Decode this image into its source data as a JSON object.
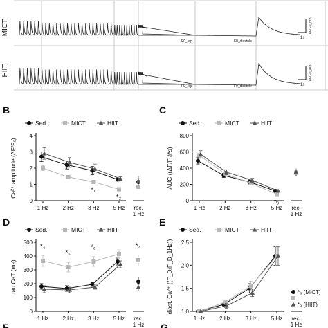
{
  "traces": {
    "rows": [
      "MICT",
      "HIIT"
    ],
    "scale_time": "1s",
    "scale_amp_mict": "1ΔF/F0_rep",
    "scale_amp_hiit": "1ΔF/F0_rep",
    "baseline_labels": [
      "F0_rep",
      "F0_diastole"
    ]
  },
  "legend": {
    "sed": "Sed.",
    "mict": "MICT",
    "hiit": "HIIT"
  },
  "colors": {
    "sed": "#111111",
    "mict": "#b8b8b8",
    "hiit": "#555555"
  },
  "chart_data": [
    {
      "panel": "B",
      "type": "line",
      "ylabel": "Ca²⁺ amplitude (ΔF/F₀)",
      "categories": [
        "1 Hz",
        "2 Hz",
        "3 Hz",
        "5 Hz"
      ],
      "extra_category": "rec. 1 Hz",
      "ylim": [
        0,
        4
      ],
      "yticks": [
        0,
        1,
        2,
        3,
        4
      ],
      "series": [
        {
          "name": "Sed.",
          "values": [
            2.7,
            2.2,
            1.85,
            1.3
          ],
          "errors": [
            0.3,
            0.25,
            0.25,
            0.1
          ],
          "rec": 1.15,
          "rec_err": 0.25
        },
        {
          "name": "MICT",
          "values": [
            2.0,
            1.45,
            1.15,
            0.7
          ],
          "errors": [
            0.15,
            0.1,
            0.1,
            0.05
          ],
          "rec": 0.85,
          "rec_err": 0.1
        },
        {
          "name": "HIIT",
          "values": [
            2.9,
            2.35,
            1.95,
            1.35
          ],
          "errors": [
            0.35,
            0.3,
            0.3,
            0.12
          ],
          "rec": 1.2,
          "rec_err": 0.3
        }
      ],
      "annotations": [
        {
          "text": "*₁",
          "category": "3 Hz"
        },
        {
          "text": "*₂",
          "category": "5 Hz"
        }
      ]
    },
    {
      "panel": "C",
      "type": "line",
      "ylabel": "AUC ((ΔF/F₀)*s)",
      "categories": [
        "1 Hz",
        "2 Hz",
        "3 Hz",
        "5 Hz"
      ],
      "extra_category": "rec. 1 Hz",
      "ylim": [
        0,
        800
      ],
      "yticks": [
        0,
        200,
        400,
        600,
        800
      ],
      "series": [
        {
          "name": "Sed.",
          "values": [
            490,
            310,
            230,
            120
          ],
          "errors": [
            40,
            25,
            25,
            10
          ],
          "rec": 345,
          "rec_err": 40
        },
        {
          "name": "MICT",
          "values": [
            560,
            330,
            215,
            80
          ],
          "errors": [
            40,
            25,
            20,
            10
          ],
          "rec": 345,
          "rec_err": 30
        },
        {
          "name": "HIIT",
          "values": [
            570,
            350,
            250,
            120
          ],
          "errors": [
            45,
            30,
            25,
            10
          ],
          "rec": 355,
          "rec_err": 40
        }
      ],
      "annotations": [
        {
          "text": "*₃",
          "category": "5 Hz"
        }
      ]
    },
    {
      "panel": "D",
      "type": "line",
      "ylabel": "tau CaT (ms)",
      "categories": [
        "1 Hz",
        "2 Hz",
        "3 Hz",
        "5 Hz"
      ],
      "extra_category": "rec. 1 Hz",
      "ylim": [
        0,
        500
      ],
      "yticks": [
        0,
        100,
        200,
        300,
        400,
        500
      ],
      "series": [
        {
          "name": "Sed.",
          "values": [
            180,
            165,
            195,
            360
          ],
          "errors": [
            20,
            20,
            15,
            25
          ],
          "rec": 215,
          "rec_err": 30
        },
        {
          "name": "MICT",
          "values": [
            365,
            320,
            360,
            415
          ],
          "errors": [
            40,
            35,
            35,
            30
          ],
          "rec": 370,
          "rec_err": 40
        },
        {
          "name": "HIIT",
          "values": [
            160,
            155,
            175,
            340
          ],
          "errors": [
            25,
            20,
            15,
            25
          ],
          "rec": 175,
          "rec_err": 25
        }
      ],
      "annotations": [
        {
          "text": "*₄",
          "category": "1 Hz"
        },
        {
          "text": "*₅",
          "category": "2 Hz"
        },
        {
          "text": "*₆",
          "category": "3 Hz"
        },
        {
          "text": "*₇",
          "category": "rec. 1 Hz"
        }
      ]
    },
    {
      "panel": "E",
      "type": "line",
      "ylabel": "diast. Ca²⁺ ((F_D/F_D_1Hz))",
      "categories": [
        "1 Hz",
        "2 Hz",
        "3 Hz",
        "5 Hz"
      ],
      "extra_category": "rec. 1 Hz",
      "ylim": [
        1.0,
        2.5
      ],
      "yticks": [
        1.0,
        1.5,
        2.0,
        2.5
      ],
      "series": [
        {
          "name": "Sed.",
          "values": [
            1.0,
            1.15,
            1.5,
            2.2
          ],
          "errors": [
            0.0,
            0.05,
            0.1,
            0.2
          ]
        },
        {
          "name": "MICT",
          "values": [
            1.0,
            1.2,
            1.55,
            2.2
          ],
          "errors": [
            0.0,
            0.05,
            0.1,
            0.2
          ]
        },
        {
          "name": "HIIT",
          "values": [
            1.0,
            1.12,
            1.4,
            2.2
          ],
          "errors": [
            0.0,
            0.05,
            0.08,
            0.2
          ]
        }
      ],
      "rec_markers": [
        {
          "name": "Sed.",
          "label": "*₈ (MICT)"
        },
        {
          "name": "MICT",
          "label": ""
        },
        {
          "name": "HIIT",
          "label": "*₉ (HIIT)"
        }
      ]
    }
  ],
  "panel_labels": [
    "B",
    "C",
    "D",
    "E",
    "F",
    "G"
  ],
  "xtick_rec": [
    "rec.",
    "1 Hz"
  ]
}
